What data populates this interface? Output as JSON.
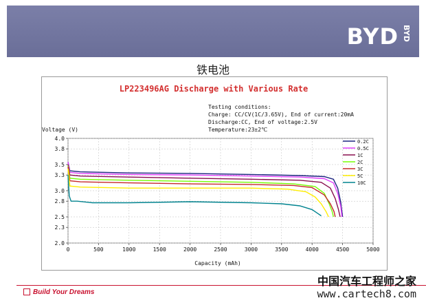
{
  "slide": {
    "logo": "BYD",
    "logo_small": "BYD",
    "title": "铁电池",
    "footer": "Build Your Dreams",
    "watermark_cn": "中国汽车工程师之家",
    "watermark_url": "www.cartech8.com"
  },
  "chart_data": {
    "type": "line",
    "title": "LP223496AG Discharge with Various Rate",
    "conditions": [
      "Testing conditions:",
      "Charge: CC/CV(1C/3.65V), End of current:20mA",
      "Discharge:CC, End of voltage:2.5V",
      "Temperature:23±2℃"
    ],
    "ylabel": "Voltage (V)",
    "xlabel": "Capacity (mAh)",
    "xlim": [
      0,
      5000
    ],
    "ylim": [
      2.0,
      4.0
    ],
    "xticks": [
      "0",
      "500",
      "1000",
      "1500",
      "2000",
      "2500",
      "3000",
      "3500",
      "4000",
      "4500",
      "5000"
    ],
    "yticks": [
      "2.0",
      "2.3",
      "2.5",
      "2.8",
      "3.0",
      "3.3",
      "3.5",
      "3.8",
      "4.0"
    ],
    "legend_position": "right",
    "series": [
      {
        "name": "0.2C",
        "color": "#1a237e",
        "points": [
          [
            0,
            3.55
          ],
          [
            30,
            3.38
          ],
          [
            200,
            3.36
          ],
          [
            1000,
            3.34
          ],
          [
            2000,
            3.33
          ],
          [
            3000,
            3.31
          ],
          [
            3800,
            3.29
          ],
          [
            4200,
            3.27
          ],
          [
            4350,
            3.22
          ],
          [
            4420,
            3.05
          ],
          [
            4470,
            2.78
          ],
          [
            4500,
            2.5
          ]
        ]
      },
      {
        "name": "0.5C",
        "color": "#e040fb",
        "points": [
          [
            0,
            3.55
          ],
          [
            30,
            3.35
          ],
          [
            200,
            3.33
          ],
          [
            1000,
            3.31
          ],
          [
            2000,
            3.3
          ],
          [
            3000,
            3.28
          ],
          [
            3800,
            3.26
          ],
          [
            4200,
            3.23
          ],
          [
            4350,
            3.15
          ],
          [
            4420,
            2.95
          ],
          [
            4470,
            2.7
          ],
          [
            4490,
            2.5
          ]
        ]
      },
      {
        "name": "1C",
        "color": "#880e4f",
        "points": [
          [
            0,
            3.5
          ],
          [
            30,
            3.3
          ],
          [
            200,
            3.28
          ],
          [
            1000,
            3.26
          ],
          [
            2000,
            3.24
          ],
          [
            3000,
            3.22
          ],
          [
            3800,
            3.2
          ],
          [
            4150,
            3.16
          ],
          [
            4300,
            3.05
          ],
          [
            4380,
            2.85
          ],
          [
            4430,
            2.65
          ],
          [
            4460,
            2.5
          ]
        ]
      },
      {
        "name": "2C",
        "color": "#76ff03",
        "points": [
          [
            0,
            3.48
          ],
          [
            30,
            3.24
          ],
          [
            200,
            3.22
          ],
          [
            1000,
            3.2
          ],
          [
            2000,
            3.18
          ],
          [
            3000,
            3.16
          ],
          [
            3700,
            3.13
          ],
          [
            4050,
            3.08
          ],
          [
            4200,
            2.95
          ],
          [
            4280,
            2.75
          ],
          [
            4330,
            2.6
          ],
          [
            4350,
            2.5
          ]
        ]
      },
      {
        "name": "3C",
        "color": "#c62828",
        "points": [
          [
            0,
            3.46
          ],
          [
            30,
            3.19
          ],
          [
            200,
            3.17
          ],
          [
            1000,
            3.15
          ],
          [
            2000,
            3.13
          ],
          [
            3000,
            3.12
          ],
          [
            3700,
            3.1
          ],
          [
            4000,
            3.06
          ],
          [
            4200,
            2.92
          ],
          [
            4300,
            2.75
          ],
          [
            4360,
            2.6
          ],
          [
            4380,
            2.5
          ]
        ]
      },
      {
        "name": "5C",
        "color": "#ffee00",
        "points": [
          [
            0,
            3.42
          ],
          [
            30,
            3.09
          ],
          [
            200,
            3.07
          ],
          [
            1000,
            3.05
          ],
          [
            2000,
            3.05
          ],
          [
            3000,
            3.05
          ],
          [
            3600,
            3.03
          ],
          [
            3900,
            2.98
          ],
          [
            4050,
            2.88
          ],
          [
            4150,
            2.75
          ],
          [
            4230,
            2.6
          ],
          [
            4270,
            2.5
          ]
        ]
      },
      {
        "name": "10C",
        "color": "#00838f",
        "points": [
          [
            0,
            3.3
          ],
          [
            20,
            2.9
          ],
          [
            50,
            2.8
          ],
          [
            150,
            2.8
          ],
          [
            400,
            2.77
          ],
          [
            1000,
            2.77
          ],
          [
            2000,
            2.79
          ],
          [
            3000,
            2.77
          ],
          [
            3500,
            2.75
          ],
          [
            3800,
            2.71
          ],
          [
            4000,
            2.64
          ],
          [
            4100,
            2.56
          ],
          [
            4150,
            2.52
          ]
        ]
      }
    ]
  }
}
